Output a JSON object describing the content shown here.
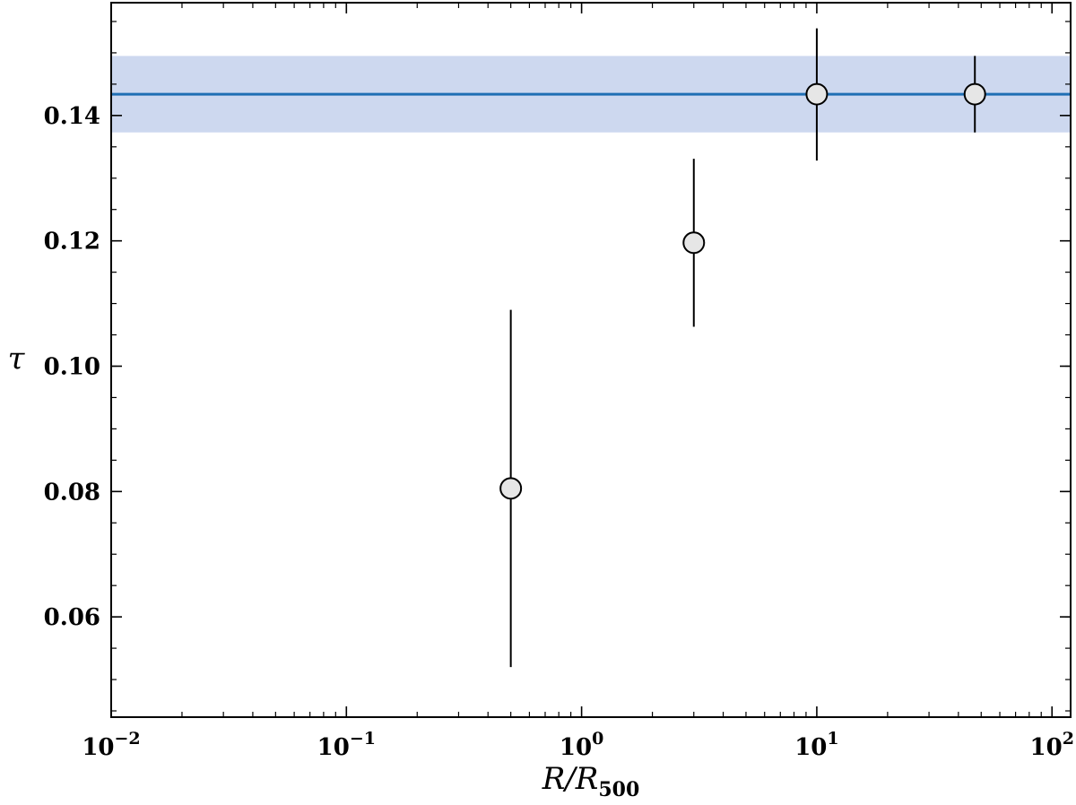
{
  "chart_data": {
    "type": "scatter",
    "xscale": "log",
    "xlim": [
      0.01,
      120
    ],
    "ylim": [
      0.044,
      0.158
    ],
    "xlabel_main": "R/R",
    "xlabel_sub": "500",
    "ylabel": "τ",
    "x_ticks": [
      {
        "value": 0.01,
        "base": "10",
        "exp": "−2"
      },
      {
        "value": 0.1,
        "base": "10",
        "exp": "−1"
      },
      {
        "value": 1,
        "base": "10",
        "exp": "0"
      },
      {
        "value": 10,
        "base": "10",
        "exp": "1"
      },
      {
        "value": 100,
        "base": "10",
        "exp": "2"
      }
    ],
    "y_ticks": [
      {
        "value": 0.06,
        "label": "0.06"
      },
      {
        "value": 0.08,
        "label": "0.08"
      },
      {
        "value": 0.1,
        "label": "0.10"
      },
      {
        "value": 0.12,
        "label": "0.12"
      },
      {
        "value": 0.14,
        "label": "0.14"
      }
    ],
    "points": [
      {
        "x": 0.5,
        "y": 0.0805,
        "yerr_low": 0.052,
        "yerr_high": 0.109
      },
      {
        "x": 3.0,
        "y": 0.1197,
        "yerr_low": 0.1063,
        "yerr_high": 0.1331
      },
      {
        "x": 10.0,
        "y": 0.1434,
        "yerr_low": 0.1328,
        "yerr_high": 0.1539
      },
      {
        "x": 47.0,
        "y": 0.1434,
        "yerr_low": 0.1373,
        "yerr_high": 0.1495
      }
    ],
    "reference": {
      "y": 0.1434,
      "band_low": 0.1373,
      "band_high": 0.1495
    },
    "colors": {
      "line": "#1f6fb4",
      "band": "#cdd8ef",
      "marker_fill": "#e6e6e6",
      "marker_edge": "#000000"
    },
    "grid": false,
    "legend": "none"
  }
}
